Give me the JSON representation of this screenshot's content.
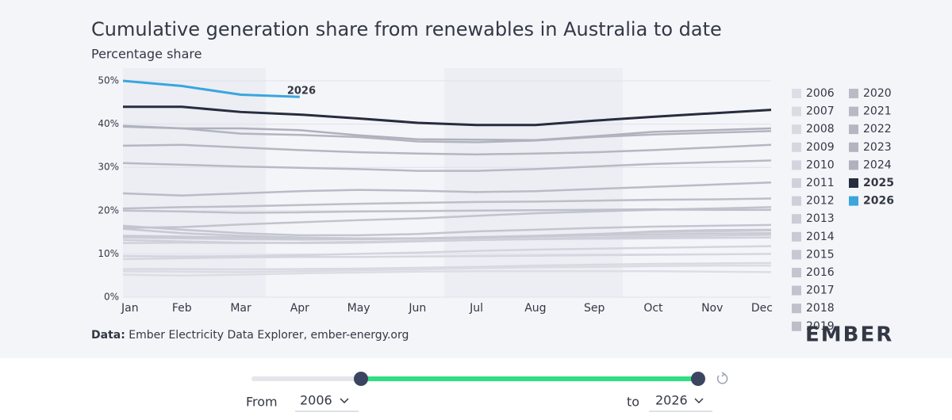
{
  "chart_data": {
    "type": "line",
    "title": "Cumulative generation share from renewables in Australia to date",
    "subtitle": "Percentage share",
    "categories": [
      "Jan",
      "Feb",
      "Mar",
      "Apr",
      "May",
      "Jun",
      "Jul",
      "Aug",
      "Sep",
      "Oct",
      "Nov",
      "Dec"
    ],
    "ylim": [
      0,
      50
    ],
    "yticks": [
      {
        "value": 0,
        "label": "0%"
      },
      {
        "value": 10,
        "label": "10%"
      },
      {
        "value": 20,
        "label": "20%"
      },
      {
        "value": 30,
        "label": "30%"
      },
      {
        "value": 40,
        "label": "40%"
      },
      {
        "value": 50,
        "label": "50%"
      }
    ],
    "grid": true,
    "legend": "right",
    "series": [
      {
        "name": "2006",
        "color": "#dcdee5",
        "values": [
          5.2,
          5.0,
          5.2,
          5.5,
          5.7,
          5.9,
          6.0,
          6.0,
          6.0,
          6.0,
          5.9,
          5.8
        ]
      },
      {
        "name": "2007",
        "color": "#dadce3",
        "values": [
          6.0,
          5.9,
          5.8,
          6.0,
          6.2,
          6.4,
          6.7,
          6.9,
          7.0,
          7.2,
          7.3,
          7.3
        ]
      },
      {
        "name": "2008",
        "color": "#d8dae2",
        "values": [
          6.5,
          6.5,
          6.4,
          6.5,
          6.6,
          6.8,
          7.0,
          7.3,
          7.5,
          7.7,
          7.8,
          7.9
        ]
      },
      {
        "name": "2009",
        "color": "#d5d7df",
        "values": [
          8.8,
          9.0,
          9.2,
          9.3,
          9.3,
          9.4,
          9.5,
          9.6,
          9.7,
          9.8,
          9.9,
          10.0
        ]
      },
      {
        "name": "2010",
        "color": "#d3d5de",
        "values": [
          9.5,
          9.4,
          9.5,
          9.7,
          10.0,
          10.3,
          10.7,
          11.0,
          11.2,
          11.4,
          11.6,
          11.8
        ]
      },
      {
        "name": "2011",
        "color": "#d0d2db",
        "values": [
          12.5,
          12.6,
          12.5,
          12.6,
          12.8,
          13.0,
          13.2,
          13.4,
          13.5,
          13.6,
          13.7,
          13.8
        ]
      },
      {
        "name": "2012",
        "color": "#cdd0d9",
        "values": [
          13.2,
          12.9,
          12.6,
          12.5,
          12.6,
          12.9,
          13.2,
          13.5,
          13.8,
          14.0,
          14.2,
          14.4
        ]
      },
      {
        "name": "2013",
        "color": "#cbcdd6",
        "values": [
          13.8,
          13.6,
          13.4,
          13.3,
          13.4,
          13.6,
          13.9,
          14.2,
          14.6,
          15.0,
          15.2,
          15.4
        ]
      },
      {
        "name": "2014",
        "color": "#c8cad4",
        "values": [
          14.2,
          14.0,
          13.8,
          13.5,
          13.4,
          13.5,
          13.7,
          14.0,
          14.3,
          14.5,
          14.7,
          14.8
        ]
      },
      {
        "name": "2015",
        "color": "#c6c8d2",
        "values": [
          15.8,
          14.8,
          14.2,
          13.8,
          13.6,
          13.6,
          13.8,
          14.1,
          14.5,
          15.2,
          15.5,
          15.6
        ]
      },
      {
        "name": "2016",
        "color": "#c3c5cf",
        "values": [
          16.5,
          15.6,
          14.8,
          14.3,
          14.3,
          14.6,
          15.2,
          15.6,
          16.0,
          16.3,
          16.5,
          16.7
        ]
      },
      {
        "name": "2017",
        "color": "#c1c3cd",
        "values": [
          16.0,
          16.2,
          16.8,
          17.3,
          17.8,
          18.2,
          18.8,
          19.4,
          19.8,
          20.2,
          20.5,
          20.8
        ]
      },
      {
        "name": "2018",
        "color": "#bec0ca",
        "values": [
          20.0,
          19.8,
          19.5,
          19.6,
          19.8,
          19.9,
          20.0,
          20.1,
          20.2,
          20.3,
          20.2,
          20.2
        ]
      },
      {
        "name": "2019",
        "color": "#bcbec8",
        "values": [
          20.5,
          20.8,
          21.0,
          21.3,
          21.6,
          21.8,
          22.0,
          22.1,
          22.3,
          22.5,
          22.6,
          22.8
        ]
      },
      {
        "name": "2020",
        "color": "#b9bbc6",
        "values": [
          24.0,
          23.5,
          24.0,
          24.5,
          24.8,
          24.6,
          24.3,
          24.5,
          25.0,
          25.5,
          26.0,
          26.5
        ]
      },
      {
        "name": "2021",
        "color": "#b7b9c4",
        "values": [
          31.0,
          30.6,
          30.2,
          29.9,
          29.6,
          29.2,
          29.2,
          29.6,
          30.2,
          30.8,
          31.2,
          31.6
        ]
      },
      {
        "name": "2022",
        "color": "#b4b6c1",
        "values": [
          35.0,
          35.2,
          34.6,
          34.0,
          33.5,
          33.2,
          33.0,
          33.2,
          33.5,
          34.0,
          34.6,
          35.2
        ]
      },
      {
        "name": "2023",
        "color": "#b2b4bf",
        "values": [
          39.4,
          39.0,
          37.8,
          37.5,
          37.0,
          36.0,
          35.8,
          36.2,
          37.0,
          37.6,
          38.0,
          38.4
        ]
      },
      {
        "name": "2024",
        "color": "#afb1bd",
        "values": [
          39.6,
          39.0,
          39.0,
          38.6,
          37.4,
          36.5,
          36.4,
          36.3,
          37.2,
          38.2,
          38.6,
          39.0
        ]
      },
      {
        "name": "2025",
        "color": "#272c3e",
        "values": [
          44.0,
          44.0,
          42.8,
          42.2,
          41.3,
          40.3,
          39.8,
          39.8,
          40.8,
          41.7,
          42.5,
          43.3
        ]
      },
      {
        "name": "2026",
        "color": "#3aa6dd",
        "values": [
          50.0,
          48.8,
          46.8,
          46.3,
          null,
          null,
          null,
          null,
          null,
          null,
          null,
          null
        ]
      }
    ]
  },
  "source": {
    "label": "Data:",
    "text": "Ember Electricity Data Explorer, ember-energy.org"
  },
  "logo": "EMBER",
  "controls": {
    "from_label": "From",
    "from_value": "2006",
    "to_label": "to",
    "to_value": "2026"
  }
}
